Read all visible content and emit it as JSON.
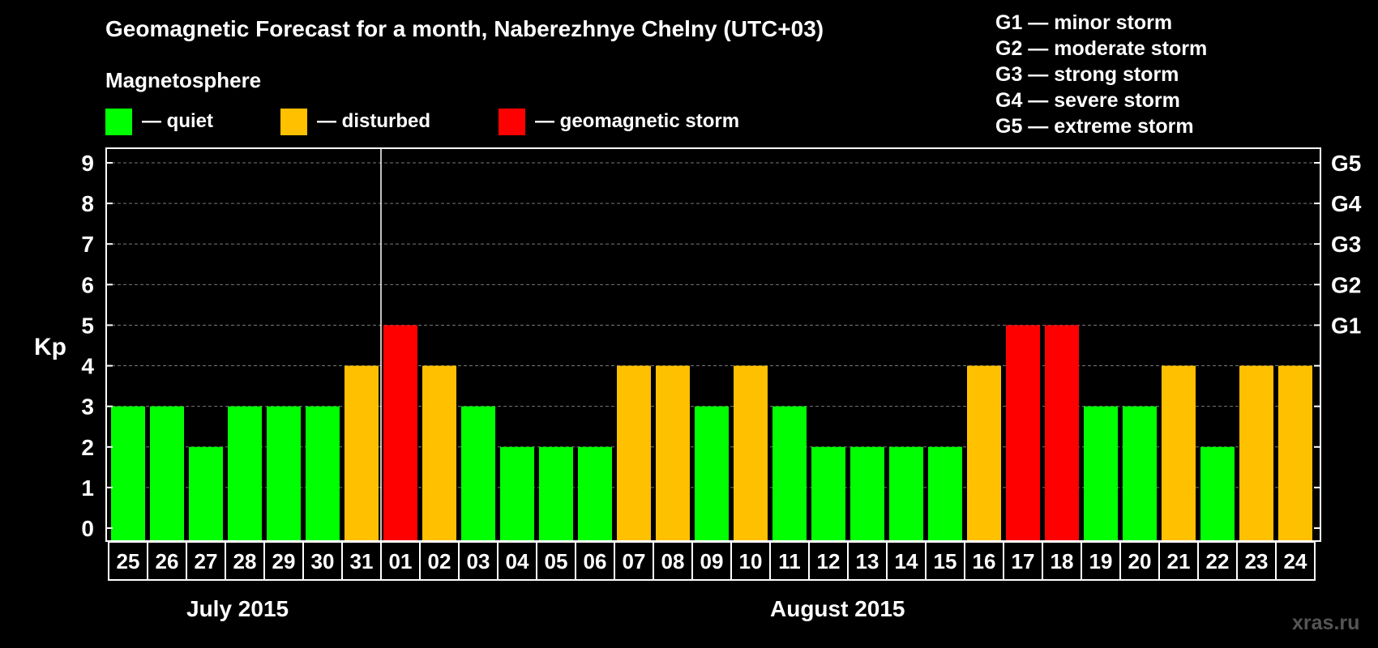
{
  "title": "Geomagnetic Forecast for a month, Naberezhnye Chelny (UTC+03)",
  "subtitle": "Magnetosphere",
  "legend": [
    {
      "label": "— quiet",
      "color": "#00ff00"
    },
    {
      "label": "— disturbed",
      "color": "#ffc000"
    },
    {
      "label": "— geomagnetic storm",
      "color": "#ff0000"
    }
  ],
  "g_legend": [
    "G1 — minor storm",
    "G2 — moderate storm",
    "G3 — strong storm",
    "G4 — severe storm",
    "G5 — extreme storm"
  ],
  "months": [
    "July 2015",
    "August 2015"
  ],
  "watermark": "xras.ru",
  "chart_data": {
    "type": "bar",
    "ylabel": "Kp",
    "ylim": [
      0,
      9
    ],
    "yticks": [
      "0",
      "1",
      "2",
      "3",
      "4",
      "5",
      "6",
      "7",
      "8",
      "9"
    ],
    "right_ticks": [
      {
        "value": 5,
        "label": "G1"
      },
      {
        "value": 6,
        "label": "G2"
      },
      {
        "value": 7,
        "label": "G3"
      },
      {
        "value": 8,
        "label": "G4"
      },
      {
        "value": 9,
        "label": "G5"
      }
    ],
    "grid": true,
    "categories": [
      "25",
      "26",
      "27",
      "28",
      "29",
      "30",
      "31",
      "01",
      "02",
      "03",
      "04",
      "05",
      "06",
      "07",
      "08",
      "09",
      "10",
      "11",
      "12",
      "13",
      "14",
      "15",
      "16",
      "17",
      "18",
      "19",
      "20",
      "21",
      "22",
      "23",
      "24"
    ],
    "values": [
      3,
      3,
      2,
      3,
      3,
      3,
      4,
      5,
      4,
      3,
      2,
      2,
      2,
      4,
      4,
      3,
      4,
      3,
      2,
      2,
      2,
      2,
      4,
      5,
      5,
      3,
      3,
      4,
      2,
      4,
      4
    ],
    "colors": {
      "quiet": "#00ff00",
      "disturbed": "#ffc000",
      "storm": "#ff0000"
    }
  }
}
